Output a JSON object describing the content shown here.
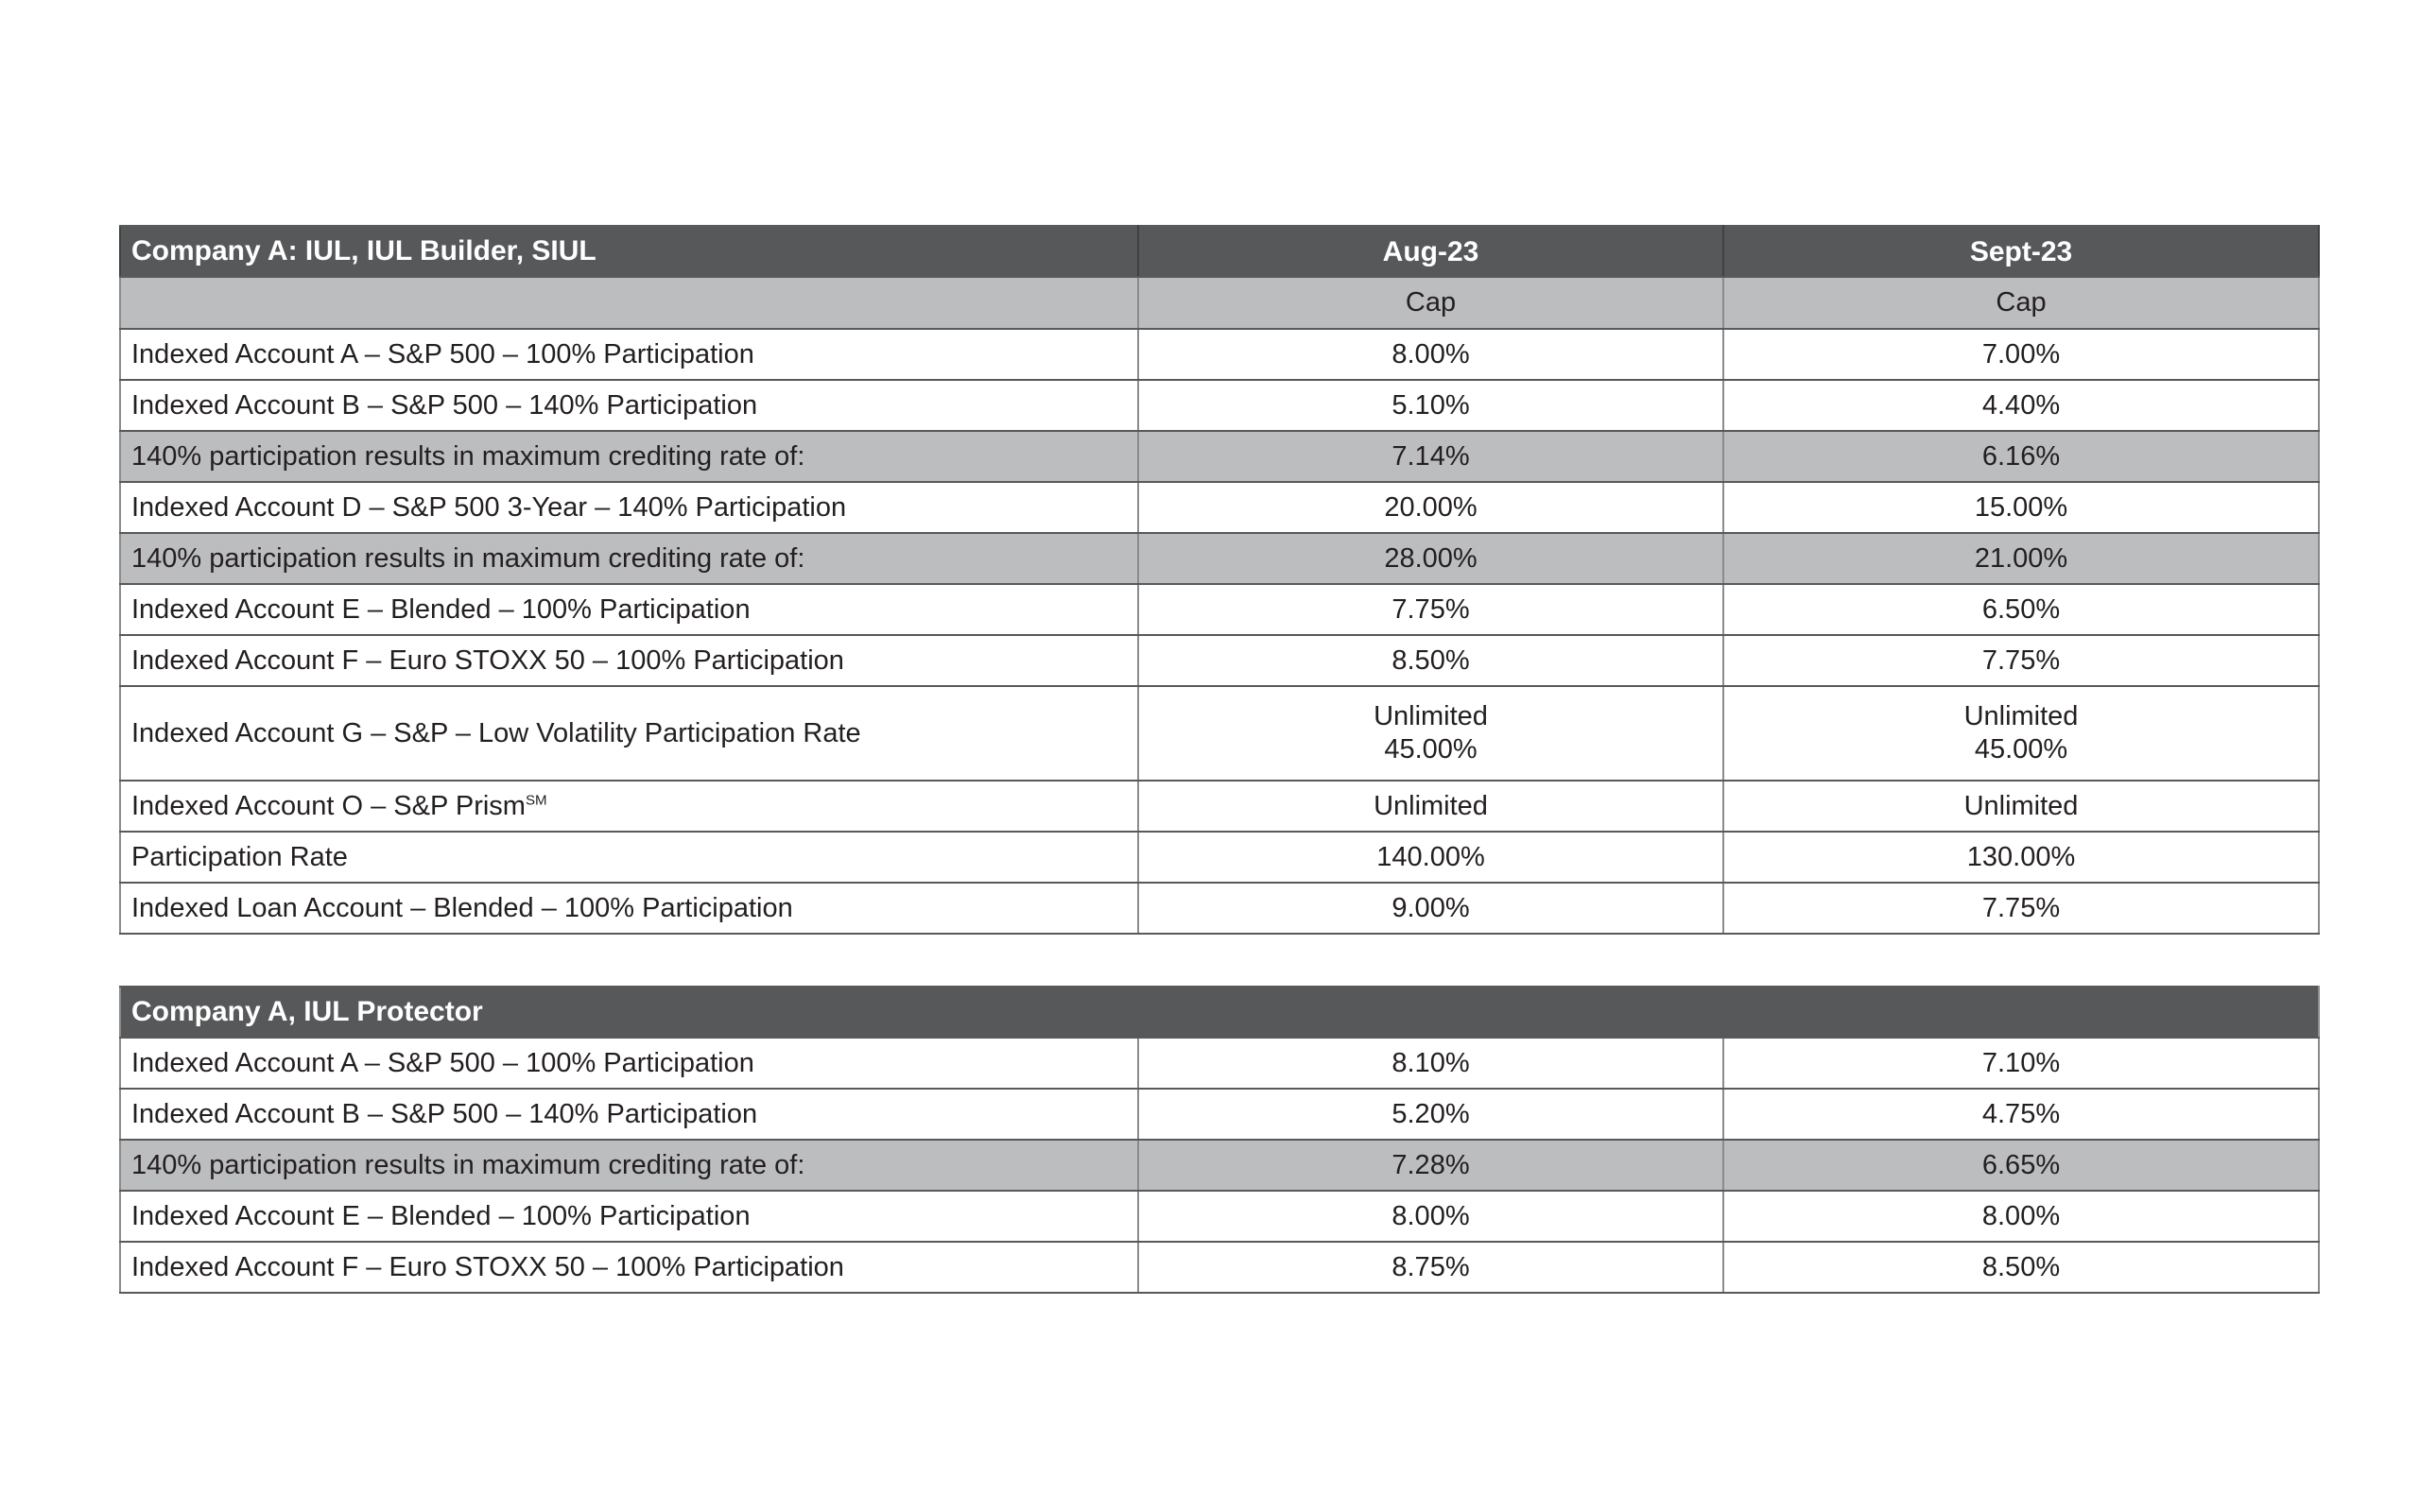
{
  "colors": {
    "header_bg": "#57585a",
    "header_text": "#ffffff",
    "gray_row_bg": "#bcbdbf",
    "body_text": "#231f20",
    "border_dark": "#58595b"
  },
  "table1": {
    "title": "Company A: IUL, IUL Builder, SIUL",
    "col_headers": [
      "Aug-23",
      "Sept-23"
    ],
    "subheader_cap": "Cap",
    "rows": [
      {
        "label": "Indexed Account A – S&P 500 – 100% Participation",
        "aug": "8.00%",
        "sept": "7.00%"
      },
      {
        "label": "Indexed Account B – S&P 500 – 140% Participation",
        "aug": "5.10%",
        "sept": "4.40%"
      },
      {
        "label": "140% participation results in maximum crediting rate of:",
        "aug": "7.14%",
        "sept": "6.16%",
        "highlight": true
      },
      {
        "label": "Indexed Account D – S&P 500 3-Year – 140% Participation",
        "aug": "20.00%",
        "sept": "15.00%"
      },
      {
        "label": "140% participation results in maximum crediting rate of:",
        "aug": "28.00%",
        "sept": "21.00%",
        "highlight": true
      },
      {
        "label": "Indexed Account E – Blended – 100% Participation",
        "aug": "7.75%",
        "sept": "6.50%"
      },
      {
        "label": "Indexed Account F – Euro STOXX 50 – 100% Participation",
        "aug": "8.50%",
        "sept": "7.75%"
      },
      {
        "label": "Indexed Account G – S&P – Low Volatility Participation Rate",
        "aug": "Unlimited\n45.00%",
        "sept": "Unlimited\n45.00%"
      },
      {
        "label": "Indexed Account O – S&P Prism",
        "label_superscript": "SM",
        "aug": "Unlimited",
        "sept": "Unlimited"
      },
      {
        "label": "Participation Rate",
        "aug": "140.00%",
        "sept": "130.00%"
      },
      {
        "label": "Indexed Loan Account – Blended – 100% Participation",
        "aug": "9.00%",
        "sept": "7.75%"
      }
    ]
  },
  "table2": {
    "title": "Company A, IUL Protector",
    "rows": [
      {
        "label": "Indexed Account A – S&P 500 – 100% Participation",
        "aug": "8.10%",
        "sept": "7.10%"
      },
      {
        "label": "Indexed Account B – S&P 500 – 140% Participation",
        "aug": "5.20%",
        "sept": "4.75%"
      },
      {
        "label": "140% participation results in maximum crediting rate of:",
        "aug": "7.28%",
        "sept": "6.65%",
        "highlight": true
      },
      {
        "label": "Indexed Account E – Blended – 100% Participation",
        "aug": "8.00%",
        "sept": "8.00%"
      },
      {
        "label": "Indexed Account F – Euro STOXX 50 – 100% Participation",
        "aug": "8.75%",
        "sept": "8.50%"
      }
    ]
  }
}
